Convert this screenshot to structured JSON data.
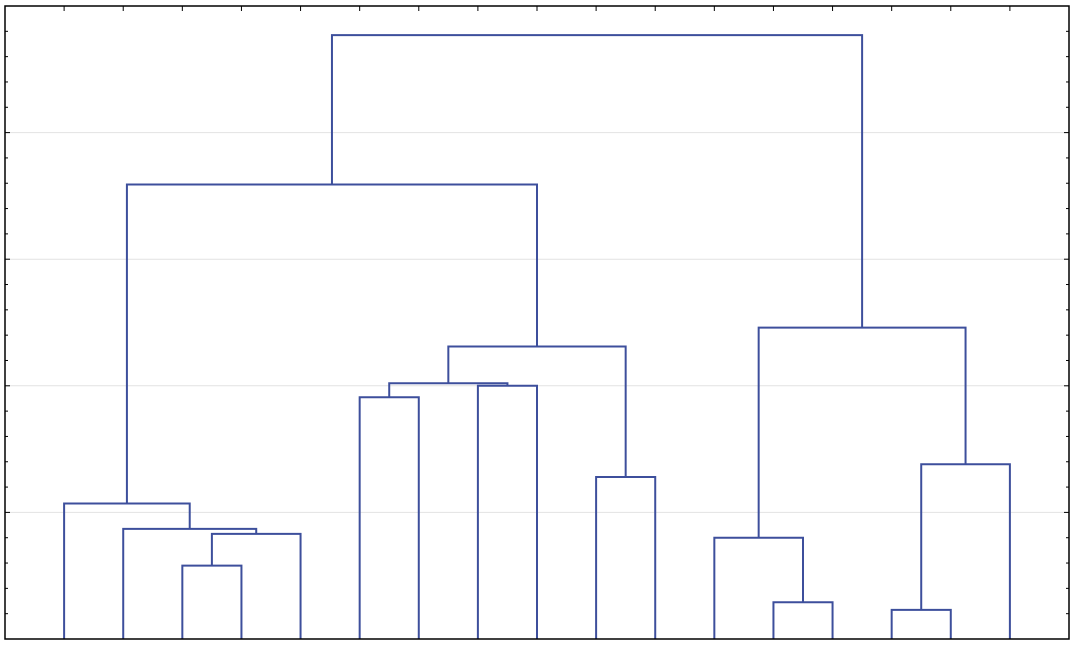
{
  "chart_data": {
    "type": "dendrogram",
    "categories": [
      null,
      null,
      null,
      null,
      null,
      null,
      null,
      null,
      null,
      null,
      null,
      null,
      null,
      null,
      null,
      null,
      null
    ],
    "merges": [
      {
        "left": 2,
        "right": 3,
        "height": 0.58
      },
      {
        "left": 17,
        "right": 4,
        "height": 0.83
      },
      {
        "left": 1,
        "right": 18,
        "height": 0.87
      },
      {
        "left": 0,
        "right": 19,
        "height": 1.07
      },
      {
        "left": 5,
        "right": 6,
        "height": 1.91
      },
      {
        "left": 7,
        "right": 8,
        "height": 2.0
      },
      {
        "left": 21,
        "right": 22,
        "height": 2.02
      },
      {
        "left": 9,
        "right": 10,
        "height": 1.28
      },
      {
        "left": 23,
        "right": 24,
        "height": 2.31
      },
      {
        "left": 20,
        "right": 25,
        "height": 3.59
      },
      {
        "left": 12,
        "right": 13,
        "height": 0.29
      },
      {
        "left": 11,
        "right": 27,
        "height": 0.8
      },
      {
        "left": 14,
        "right": 15,
        "height": 0.23
      },
      {
        "left": 29,
        "right": 16,
        "height": 1.38
      },
      {
        "left": 28,
        "right": 30,
        "height": 2.46
      },
      {
        "left": 26,
        "right": 31,
        "height": 4.77
      }
    ],
    "color": "#3d4f9c",
    "ylim": [
      0,
      5
    ],
    "yticks": [
      0,
      1,
      2,
      3,
      4,
      5
    ],
    "grid": true
  }
}
